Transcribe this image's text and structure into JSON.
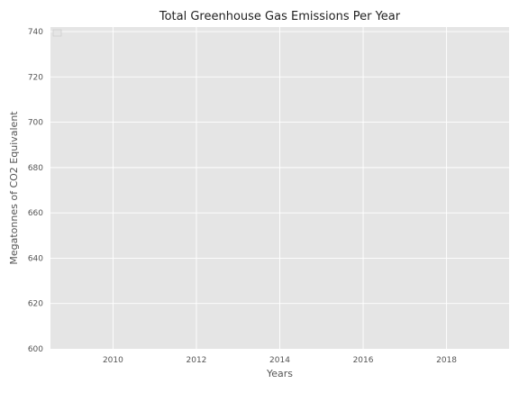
{
  "chart_data": {
    "type": "line",
    "title": "Total Greenhouse Gas Emissions Per Year",
    "xlabel": "Years",
    "ylabel": "Megatonnes of CO2 Equivalent",
    "xlim": [
      2008.5,
      2019.5
    ],
    "ylim": [
      600,
      742
    ],
    "x_ticks": [
      2010,
      2012,
      2014,
      2016,
      2018
    ],
    "y_ticks": [
      600,
      620,
      640,
      660,
      680,
      700,
      720,
      740
    ],
    "grid": true,
    "legend": "top-left",
    "series": [],
    "colors": {
      "plot_background": "#e5e5e5",
      "grid": "#ffffff",
      "text": "#555555",
      "title_text": "#222222"
    }
  }
}
